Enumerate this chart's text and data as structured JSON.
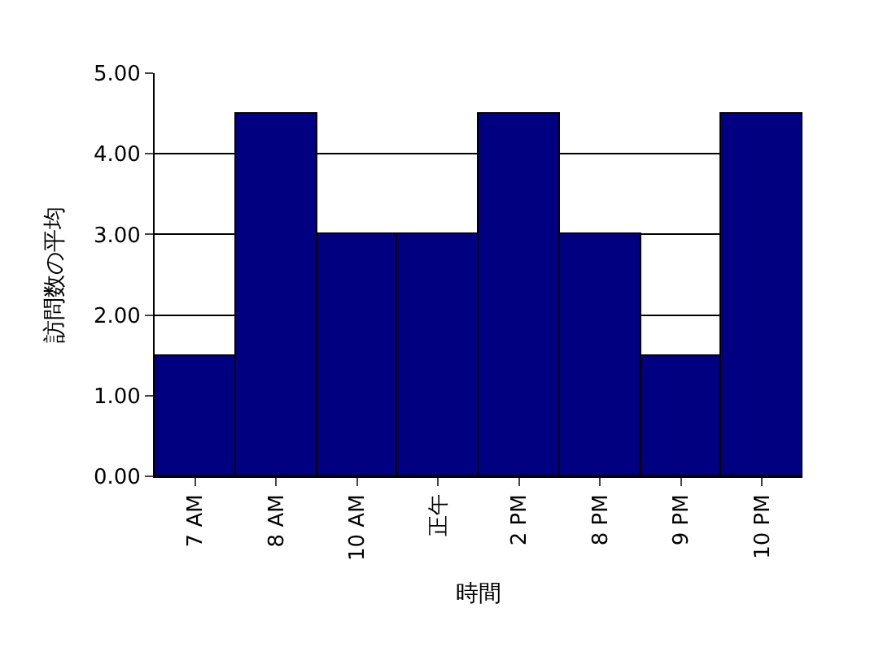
{
  "chart_data": {
    "type": "bar",
    "xlabel": "時間",
    "ylabel": "訪問数の平均",
    "categories": [
      "7 AM",
      "8 AM",
      "10 AM",
      "正午",
      "2 PM",
      "8 PM",
      "9 PM",
      "10 PM"
    ],
    "values": [
      1.5,
      4.5,
      3.0,
      3.0,
      4.5,
      3.0,
      1.5,
      4.5
    ],
    "color": "#000080",
    "ylim": [
      0,
      5
    ],
    "yticks": [
      {
        "value": 0,
        "label": "0.00"
      },
      {
        "value": 1,
        "label": "1.00"
      },
      {
        "value": 2,
        "label": "2.00"
      },
      {
        "value": 3,
        "label": "3.00"
      },
      {
        "value": 4,
        "label": "4.00"
      },
      {
        "value": 5,
        "label": "5.00"
      }
    ],
    "grid": "y"
  }
}
